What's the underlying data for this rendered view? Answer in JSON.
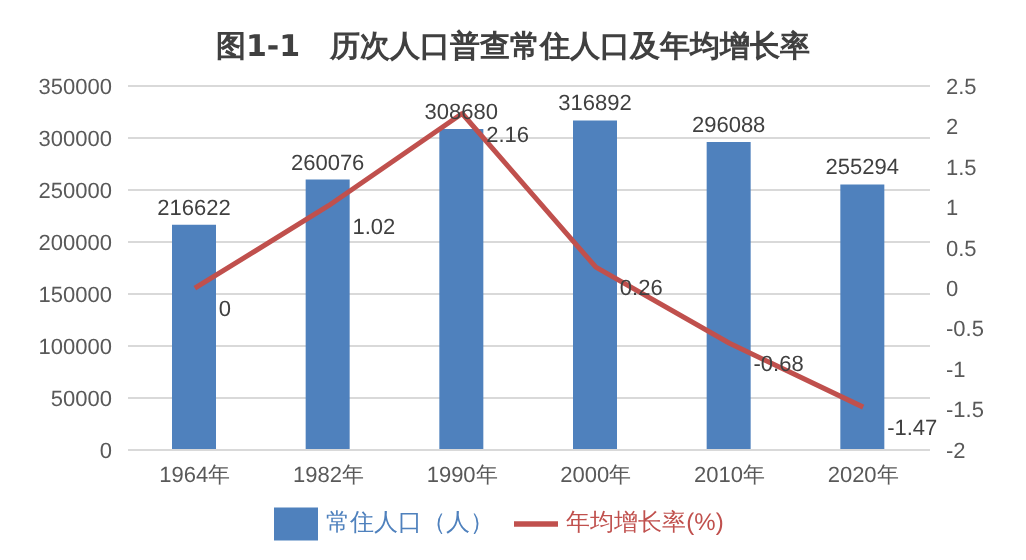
{
  "chart_data": {
    "type": "bar",
    "title": "图1-1　历次人口普查常住人口及年均增长率",
    "categories": [
      "1964年",
      "1982年",
      "1990年",
      "2000年",
      "2010年",
      "2020年"
    ],
    "series": [
      {
        "name": "常住人口（人）",
        "color": "#4f81bd",
        "values": [
          216622,
          260076,
          308680,
          316892,
          296088,
          255294
        ]
      },
      {
        "name": "年均增长率(%)",
        "type": "line",
        "axis": "y2",
        "color": "#c0504d",
        "values": [
          0,
          1.02,
          2.16,
          0.26,
          -0.68,
          -1.47
        ]
      }
    ],
    "ylim": [
      0,
      350000
    ],
    "yticks": [
      0,
      50000,
      100000,
      150000,
      200000,
      250000,
      300000,
      350000
    ],
    "y2lim": [
      -2,
      2.5
    ],
    "y2ticks": [
      -2,
      -1.5,
      -1,
      -0.5,
      0,
      0.5,
      1,
      1.5,
      2,
      2.5
    ],
    "grid": "y",
    "legend": "bottom",
    "data_labels": true,
    "marker": "none"
  }
}
